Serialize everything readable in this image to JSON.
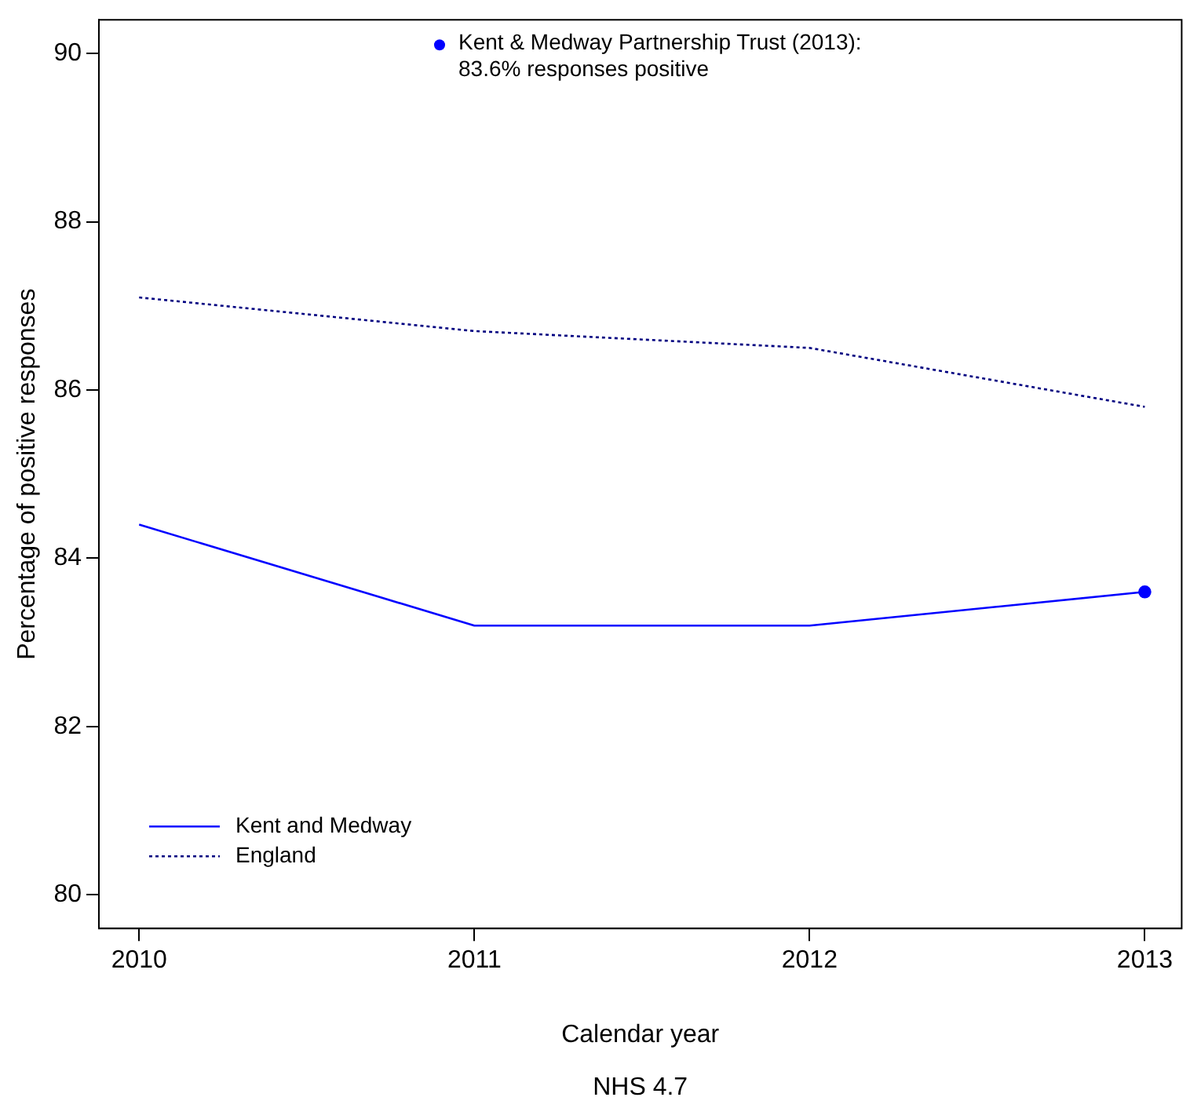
{
  "chart_data": {
    "type": "line",
    "xlabel": "Calendar year",
    "ylabel": "Percentage of positive responses",
    "x": [
      2010,
      2011,
      2012,
      2013
    ],
    "series": [
      {
        "name": "Kent and Medway",
        "color": "#0000ff",
        "values": [
          84.4,
          83.2,
          83.2,
          83.6
        ],
        "line_style": "solid"
      },
      {
        "name": "England",
        "color": "#000080",
        "values": [
          87.1,
          86.7,
          86.5,
          85.8
        ],
        "line_style": "dotted"
      },
      {
        "type": "scatter",
        "name": "Kent & Medway Partnership Trust (2013):\n83.6% responses positive",
        "color": "#0000ff",
        "x": [
          2013
        ],
        "values": [
          83.6
        ],
        "marker": "circle"
      }
    ],
    "annotations": [
      "NHS 4.7"
    ],
    "xlim": [
      2009.88,
      2013.11
    ],
    "xticks": [
      2010,
      2011,
      2012,
      2013
    ],
    "ylim": [
      79.6,
      90.4
    ],
    "yticks": [
      80,
      82,
      84,
      86,
      88,
      90
    ],
    "grid": false,
    "legend": "left",
    "marker": "none"
  }
}
